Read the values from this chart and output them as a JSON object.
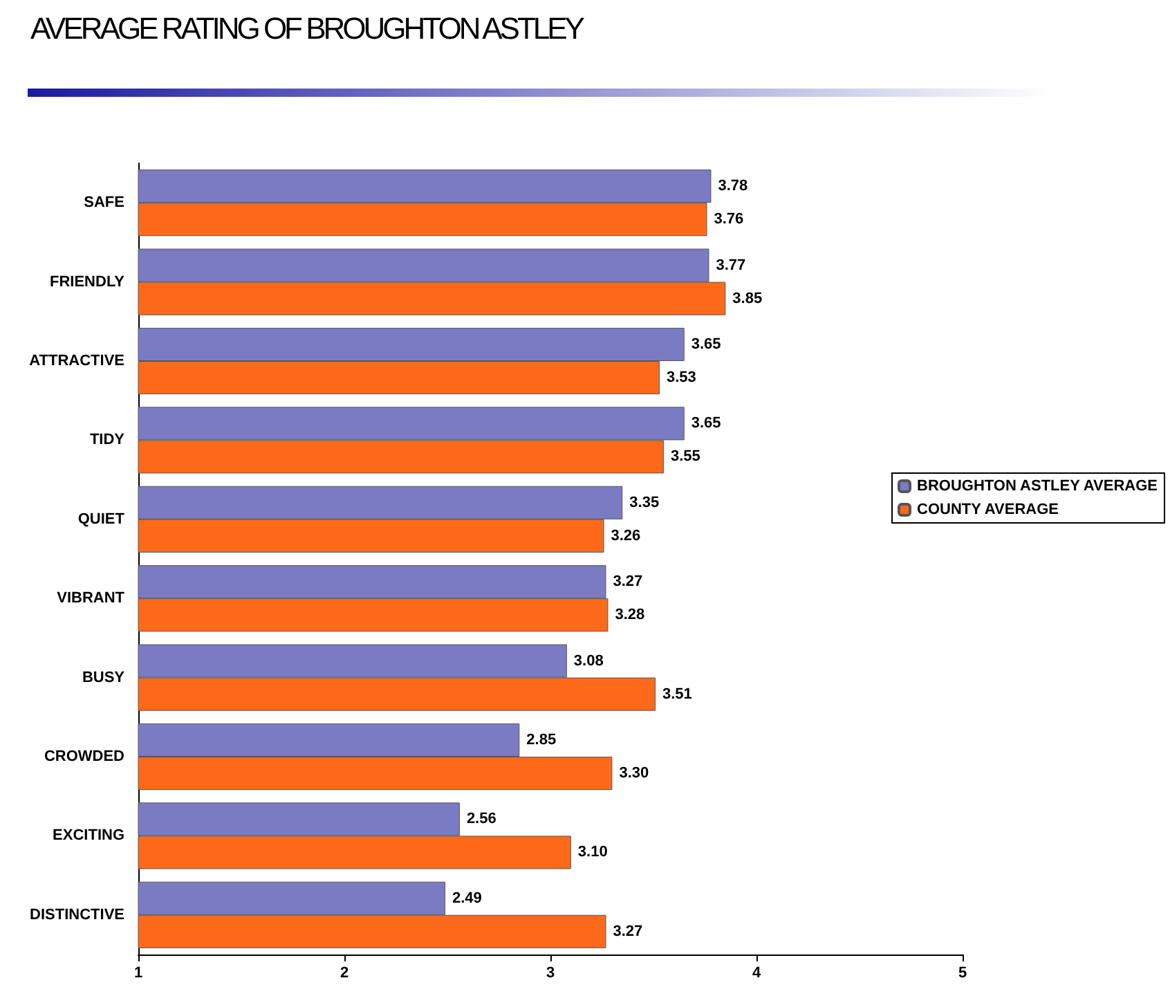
{
  "chart_data": {
    "type": "bar",
    "orientation": "horizontal",
    "title": "AVERAGE RATING OF BROUGHTON ASTLEY",
    "categories": [
      "SAFE",
      "FRIENDLY",
      "ATTRACTIVE",
      "TIDY",
      "QUIET",
      "VIBRANT",
      "BUSY",
      "CROWDED",
      "EXCITING",
      "DISTINCTIVE"
    ],
    "series": [
      {
        "name": "BROUGHTON ASTLEY AVERAGE",
        "color": "#7b7bc4",
        "values": [
          3.78,
          3.77,
          3.65,
          3.65,
          3.35,
          3.27,
          3.08,
          2.85,
          2.56,
          2.49
        ],
        "value_labels": [
          "3.78",
          "3.77",
          "3.65",
          "3.65",
          "3.35",
          "3.27",
          "3.08",
          "2.85",
          "2.56",
          "2.49"
        ]
      },
      {
        "name": "COUNTY AVERAGE",
        "color": "#ff6a1a",
        "values": [
          3.76,
          3.85,
          3.53,
          3.55,
          3.26,
          3.28,
          3.51,
          3.3,
          3.1,
          3.27
        ],
        "value_labels": [
          "3.76",
          "3.85",
          "3.53",
          "3.55",
          "3.26",
          "3.28",
          "3.51",
          "3.30",
          "3.10",
          "3.27"
        ]
      }
    ],
    "xlim": [
      1,
      5
    ],
    "xticks": [
      1,
      2,
      3,
      4,
      5
    ],
    "grid": false,
    "legend": "right"
  }
}
